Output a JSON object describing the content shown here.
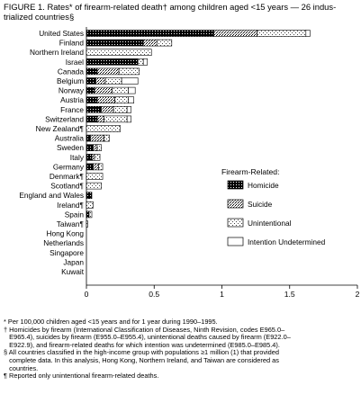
{
  "title": {
    "line1": "FIGURE 1. Rates* of firearm-related death† among children aged <15 years — 26 indus-",
    "line2": "trialized countries§"
  },
  "chart_data": {
    "type": "bar",
    "orientation": "horizontal",
    "stacked": true,
    "categories": [
      "United States",
      "Finland",
      "Northern Ireland",
      "Israel",
      "Canada",
      "Belgium",
      "Norway",
      "Austria",
      "France",
      "Switzerland",
      "New Zealand¶",
      "Australia",
      "Sweden",
      "Italy",
      "Germany",
      "Denmark¶",
      "Scotland¶",
      "England and Wales",
      "Ireland¶",
      "Spain",
      "Taiwan¶",
      "Hong Kong",
      "Netherlands",
      "Singapore",
      "Japan",
      "Kuwait"
    ],
    "series": [
      {
        "name": "Homicide",
        "color": "#111111",
        "values": [
          0.94,
          0.42,
          0.0,
          0.38,
          0.08,
          0.07,
          0.06,
          0.08,
          0.11,
          0.08,
          0.0,
          0.03,
          0.05,
          0.04,
          0.05,
          0.0,
          0.0,
          0.04,
          0.0,
          0.02,
          0.0,
          0,
          0,
          0,
          0,
          0
        ]
      },
      {
        "name": "Suicide",
        "color": "#bbbbbb",
        "values": [
          0.32,
          0.1,
          0.0,
          0.0,
          0.16,
          0.07,
          0.13,
          0.13,
          0.09,
          0.05,
          0.0,
          0.1,
          0.03,
          0.02,
          0.04,
          0.0,
          0.0,
          0.0,
          0.0,
          0.0,
          0.0,
          0,
          0,
          0,
          0,
          0
        ]
      },
      {
        "name": "Unintentional",
        "color": "#dddddd",
        "values": [
          0.36,
          0.11,
          0.48,
          0.04,
          0.15,
          0.12,
          0.12,
          0.1,
          0.1,
          0.17,
          0.25,
          0.04,
          0.03,
          0.04,
          0.03,
          0.12,
          0.11,
          0.0,
          0.05,
          0.02,
          0.01,
          0,
          0,
          0,
          0,
          0
        ]
      },
      {
        "name": "Intention Undetermined",
        "color": "#ffffff",
        "values": [
          0.03,
          0.0,
          0.0,
          0.03,
          0.0,
          0.12,
          0.05,
          0.04,
          0.03,
          0.03,
          0.0,
          0.0,
          0.0,
          0.0,
          0.0,
          0.0,
          0.0,
          0.0,
          0.0,
          0.0,
          0.0,
          0,
          0,
          0,
          0,
          0
        ]
      }
    ],
    "xlim": [
      0,
      2
    ],
    "xticks": [
      "0",
      "0.5",
      "1",
      "1.5",
      "2"
    ],
    "xtick_values": [
      0,
      0.5,
      1,
      1.5,
      2
    ],
    "legend_title": "Firearm-Related:",
    "legend_position": "right",
    "grid": false
  },
  "footnotes": [
    "* Per 100,000 children aged <15 years and for 1 year during 1990–1995.",
    "† Homicides by firearm (International Classification of Diseases, Ninth Revision, codes E965.0–",
    "   E965.4), suicides by firearm (E955.0–E955.4), unintentional deaths caused by firearm (E922.0–",
    "   E922.9), and firearm-related deaths for which intention was undetermined (E985.0–E985.4).",
    "§ All countries classified in the high-income group with populations ≥1 million (1) that provided",
    "   complete data. In this analysis, Hong Kong, Northern Ireland, and Taiwan are considered as",
    "   countries.",
    "¶ Reported only unintentional firearm-related deaths."
  ]
}
